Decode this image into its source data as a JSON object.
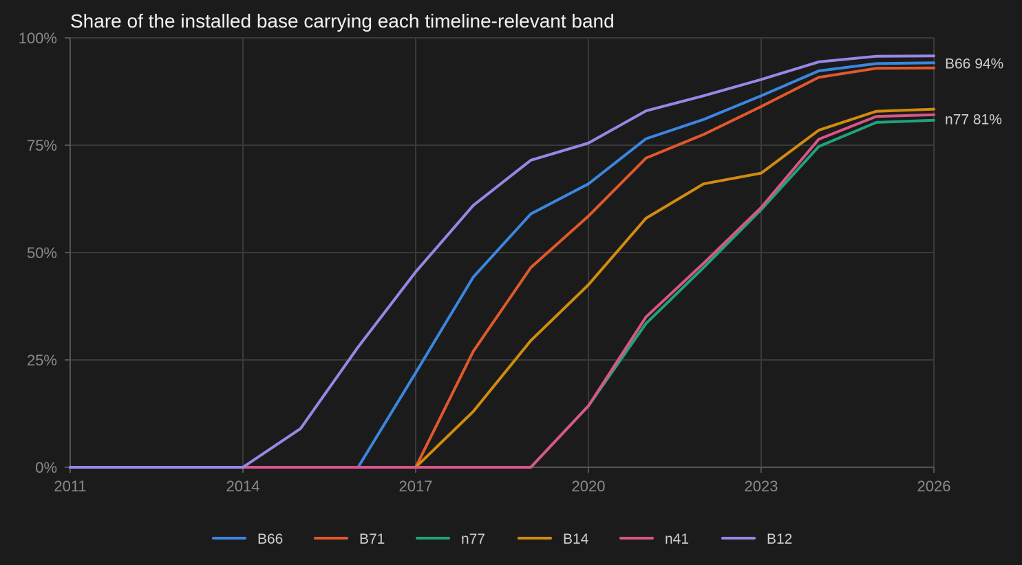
{
  "chart_data": {
    "type": "line",
    "title": "Share of the installed base carrying each timeline-relevant band",
    "x": [
      2011,
      2012,
      2013,
      2014,
      2015,
      2016,
      2017,
      2018,
      2019,
      2020,
      2021,
      2022,
      2023,
      2024,
      2025,
      2026
    ],
    "xlim": [
      2011,
      2026
    ],
    "x_ticks": [
      "2011",
      "2014",
      "2017",
      "2020",
      "2023",
      "2026"
    ],
    "ylim": [
      0,
      100
    ],
    "y_ticks": [
      "0%",
      "25%",
      "50%",
      "75%",
      "100%"
    ],
    "grid": true,
    "legend_position": "bottom",
    "series": [
      {
        "name": "B66",
        "color": "#3b86e0",
        "values": [
          0,
          0,
          0,
          0,
          0,
          0,
          22,
          44.3,
          59,
          66,
          76.5,
          81,
          86.5,
          92.3,
          94,
          94.2
        ]
      },
      {
        "name": "B71",
        "color": "#e0592b",
        "values": [
          0,
          0,
          0,
          0,
          0,
          0,
          0,
          27,
          46.5,
          58.5,
          72,
          77.5,
          84,
          90.8,
          92.9,
          93
        ]
      },
      {
        "name": "n77",
        "color": "#1fa37a",
        "values": [
          0,
          0,
          0,
          0,
          0,
          0,
          0,
          0,
          0,
          14.3,
          33.5,
          46.5,
          60,
          74.7,
          80.3,
          80.8
        ]
      },
      {
        "name": "B14",
        "color": "#d18c0f",
        "values": [
          0,
          0,
          0,
          0,
          0,
          0,
          0,
          13,
          29.5,
          42.5,
          58,
          66,
          68.5,
          78.5,
          82.9,
          83.4
        ]
      },
      {
        "name": "n41",
        "color": "#d9558a",
        "values": [
          0,
          0,
          0,
          0,
          0,
          0,
          0,
          0,
          0,
          14.3,
          35,
          47.5,
          60.5,
          76.4,
          81.7,
          82.1
        ]
      },
      {
        "name": "B12",
        "color": "#9a86e6",
        "values": [
          0,
          0,
          0,
          0,
          9,
          28,
          45.5,
          61,
          71.5,
          75.5,
          83,
          86.5,
          90.3,
          94.4,
          95.7,
          95.8
        ]
      }
    ],
    "end_labels": [
      {
        "text": "B66 94%",
        "series": "B66",
        "value": 94
      },
      {
        "text": "n77 81%",
        "series": "n77",
        "value": 81
      }
    ]
  }
}
